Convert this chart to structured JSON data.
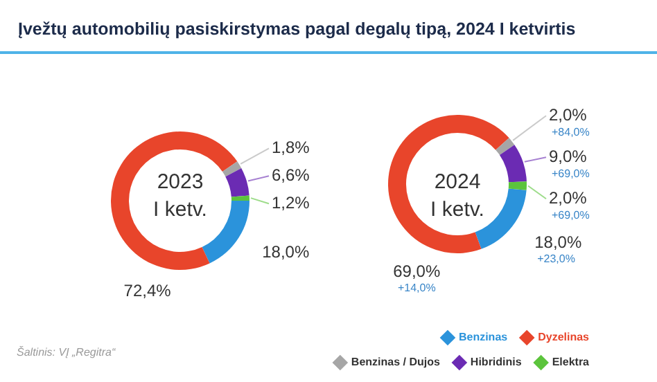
{
  "chart_data": [
    {
      "type": "donut",
      "title": "Įvežtų automobilių pasiskirstymas pagal degalų tipą, 2024 I ketvirtis",
      "subtitle": "2023 I ketv.",
      "categories": [
        null,
        null,
        null,
        null,
        null
      ],
      "values": [
        18.0,
        72.4,
        1.8,
        6.6,
        1.2
      ],
      "colors": [
        "#2b93db",
        "#e8452b",
        "#a6a6a6",
        "#6b2bb3",
        "#5cc43c"
      ],
      "value_labels": [
        "18,0%",
        "72,4%",
        "1,8%",
        "6,6%",
        "1,2%"
      ],
      "annotations": [
        "Šaltinis: VĮ „Regitra“"
      ]
    },
    {
      "type": "donut",
      "subtitle": "2024 I ketv.",
      "categories": [
        "Benzinas",
        "Dyzelinas",
        "Benzinas / Dujos",
        "Hibridinis",
        "Elektra"
      ],
      "values": [
        18.0,
        69.0,
        2.0,
        9.0,
        2.0
      ],
      "colors": [
        "#2b93db",
        "#e8452b",
        "#a6a6a6",
        "#6b2bb3",
        "#5cc43c"
      ],
      "value_labels": [
        "18,0%",
        "69,0%",
        "2,0%",
        "9,0%",
        "2,0%"
      ],
      "legend": "bottom right",
      "annotations": [
        {
          "text": "+23,0%",
          "x": "Benzinas"
        },
        {
          "text": "+14,0%",
          "x": "Dyzelinas"
        },
        {
          "text": "+84,0%",
          "x": "Benzinas / Dujos"
        },
        {
          "text": "+69,0%",
          "x": "Hibridinis"
        },
        {
          "text": "+69,0%",
          "x": "Elektra"
        }
      ]
    }
  ]
}
